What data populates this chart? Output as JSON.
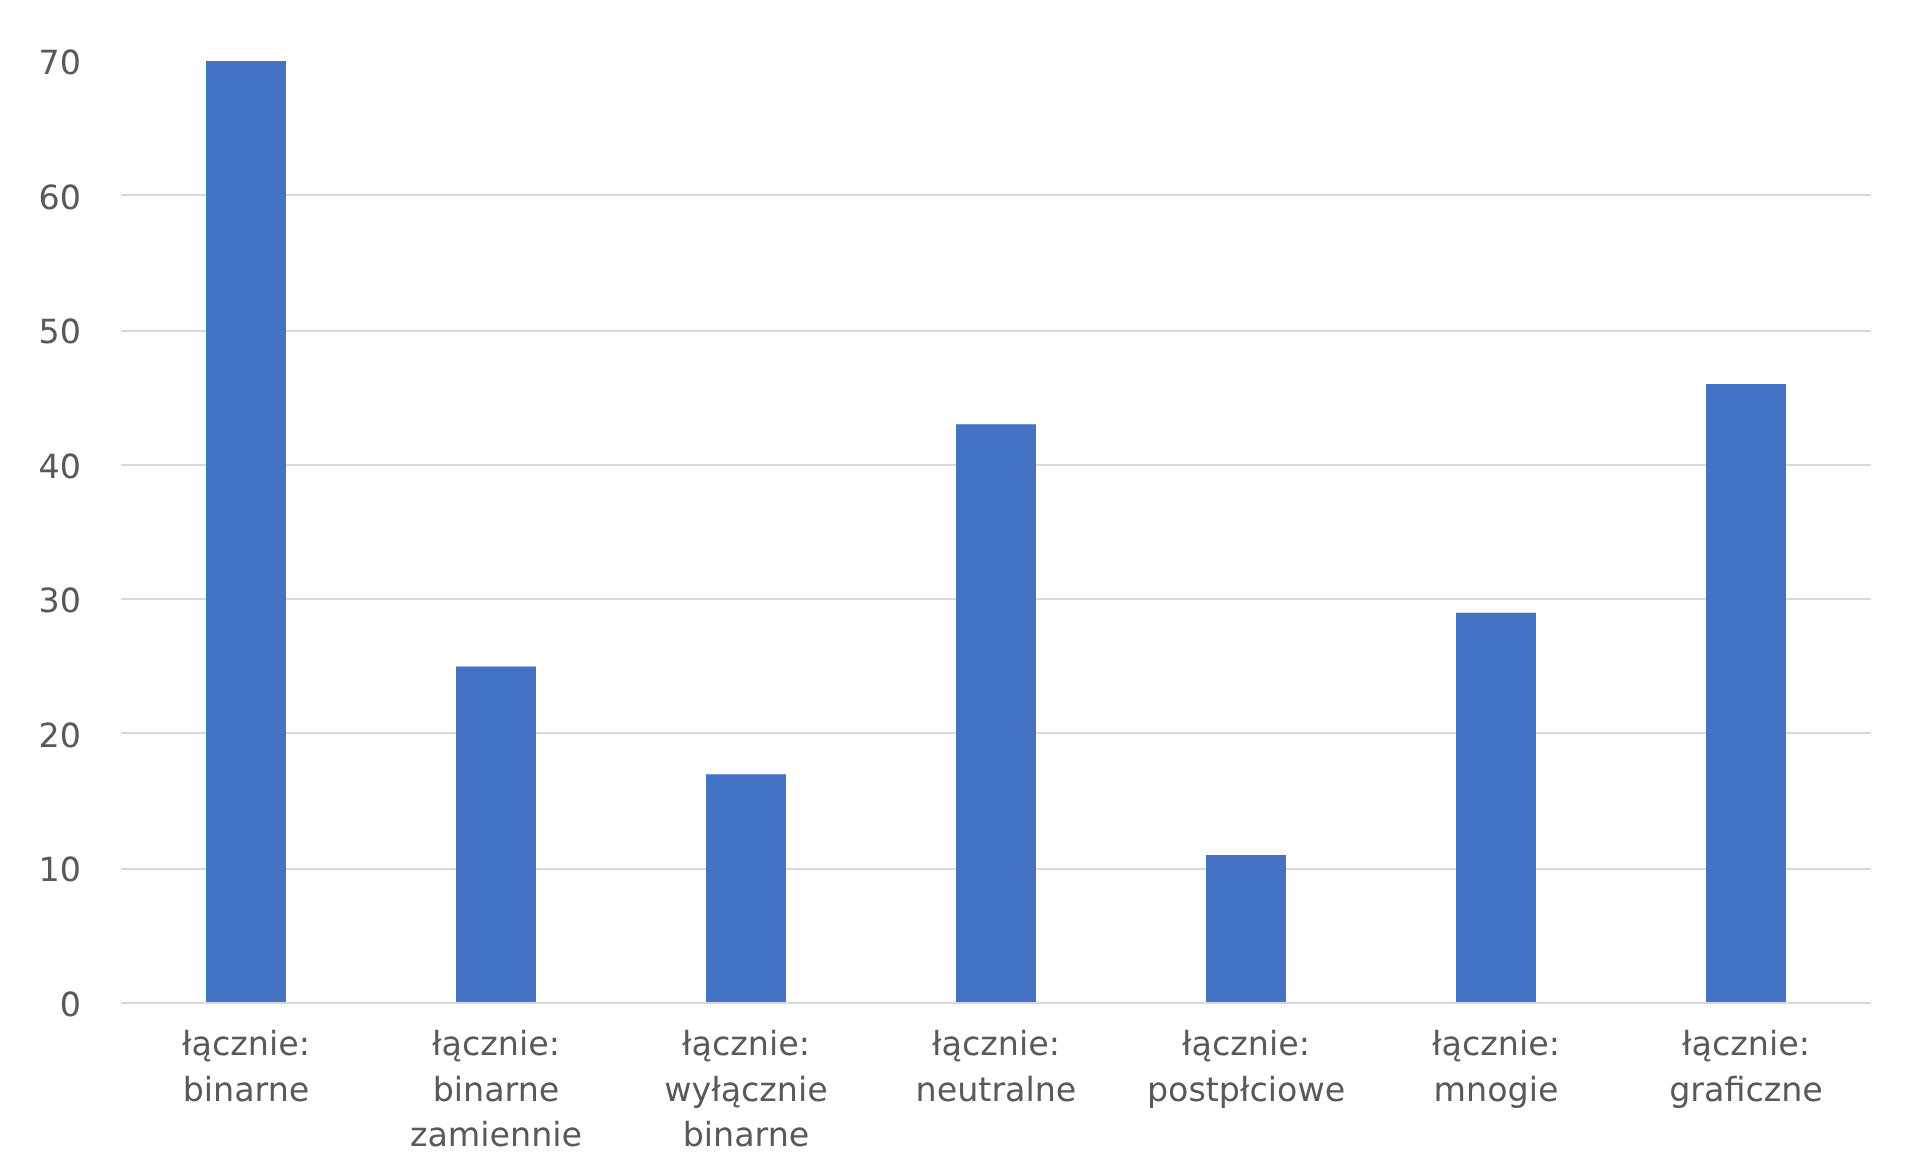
{
  "chart_data": {
    "type": "bar",
    "categories": [
      "łącznie:\nbinarne",
      "łącznie:\nbinarne\nzamiennie",
      "łącznie:\nwyłącznie\nbinarne",
      "łącznie:\nneutralne",
      "łącznie:\npostpłciowe",
      "łącznie:\nmnogie",
      "łącznie:\ngraficzne"
    ],
    "values": [
      70,
      25,
      17,
      43,
      11,
      29,
      46
    ],
    "color": "#4472c4",
    "ylim": [
      0,
      70
    ],
    "yticks": [
      0,
      10,
      20,
      30,
      40,
      50,
      60,
      70
    ],
    "grid": "y"
  }
}
